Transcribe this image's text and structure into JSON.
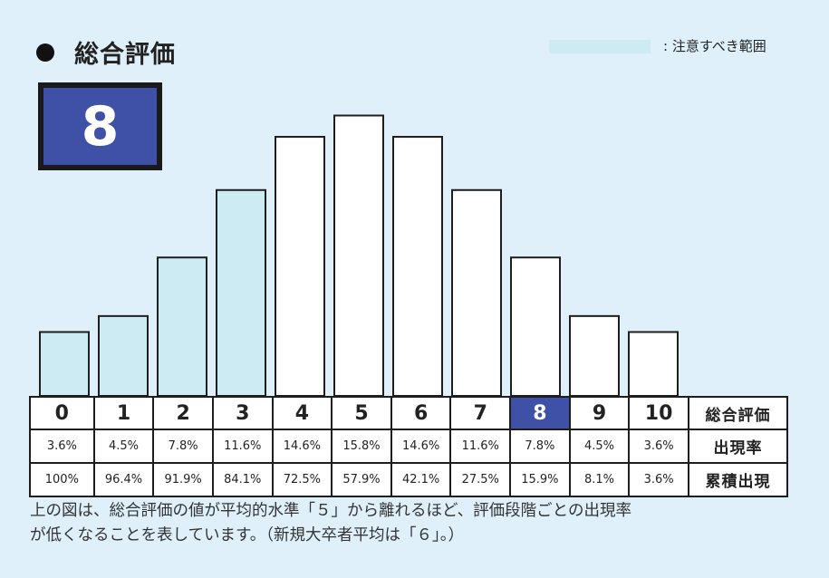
{
  "header": {
    "title": "総合評価",
    "legend_label": ": 注意すべき範囲",
    "legend_color": "#cdebf3"
  },
  "score": {
    "value": "8",
    "color": "#3f51a6"
  },
  "chart_data": {
    "type": "bar",
    "categories": [
      "0",
      "1",
      "2",
      "3",
      "4",
      "5",
      "6",
      "7",
      "8",
      "9",
      "10"
    ],
    "values": [
      3.6,
      4.5,
      7.8,
      11.6,
      14.6,
      15.8,
      14.6,
      11.6,
      7.8,
      4.5,
      3.6
    ],
    "cumulative": [
      100,
      96.4,
      91.9,
      84.1,
      72.5,
      57.9,
      42.1,
      27.5,
      15.9,
      8.1,
      3.6
    ],
    "highlight_categories": [
      "0",
      "1",
      "2",
      "3"
    ],
    "highlight_color": "#cdebf3",
    "current": "8",
    "ylim": [
      0,
      17
    ]
  },
  "table": {
    "row_labels": [
      "総合評価",
      "出現率",
      "累積出現"
    ],
    "rates": [
      "3.6%",
      "4.5%",
      "7.8%",
      "11.6%",
      "14.6%",
      "15.8%",
      "14.6%",
      "11.6%",
      "7.8%",
      "4.5%",
      "3.6%"
    ],
    "cumulative": [
      "100%",
      "96.4%",
      "91.9%",
      "84.1%",
      "72.5%",
      "57.9%",
      "42.1%",
      "27.5%",
      "15.9%",
      "8.1%",
      "3.6%"
    ]
  },
  "caption": {
    "line1": "上の図は、総合評価の値が平均的水準「５」から離れるほど、評価段階ごとの出現率",
    "line2": "が低くなることを表しています。（新規大卒者平均は「６」。）"
  }
}
